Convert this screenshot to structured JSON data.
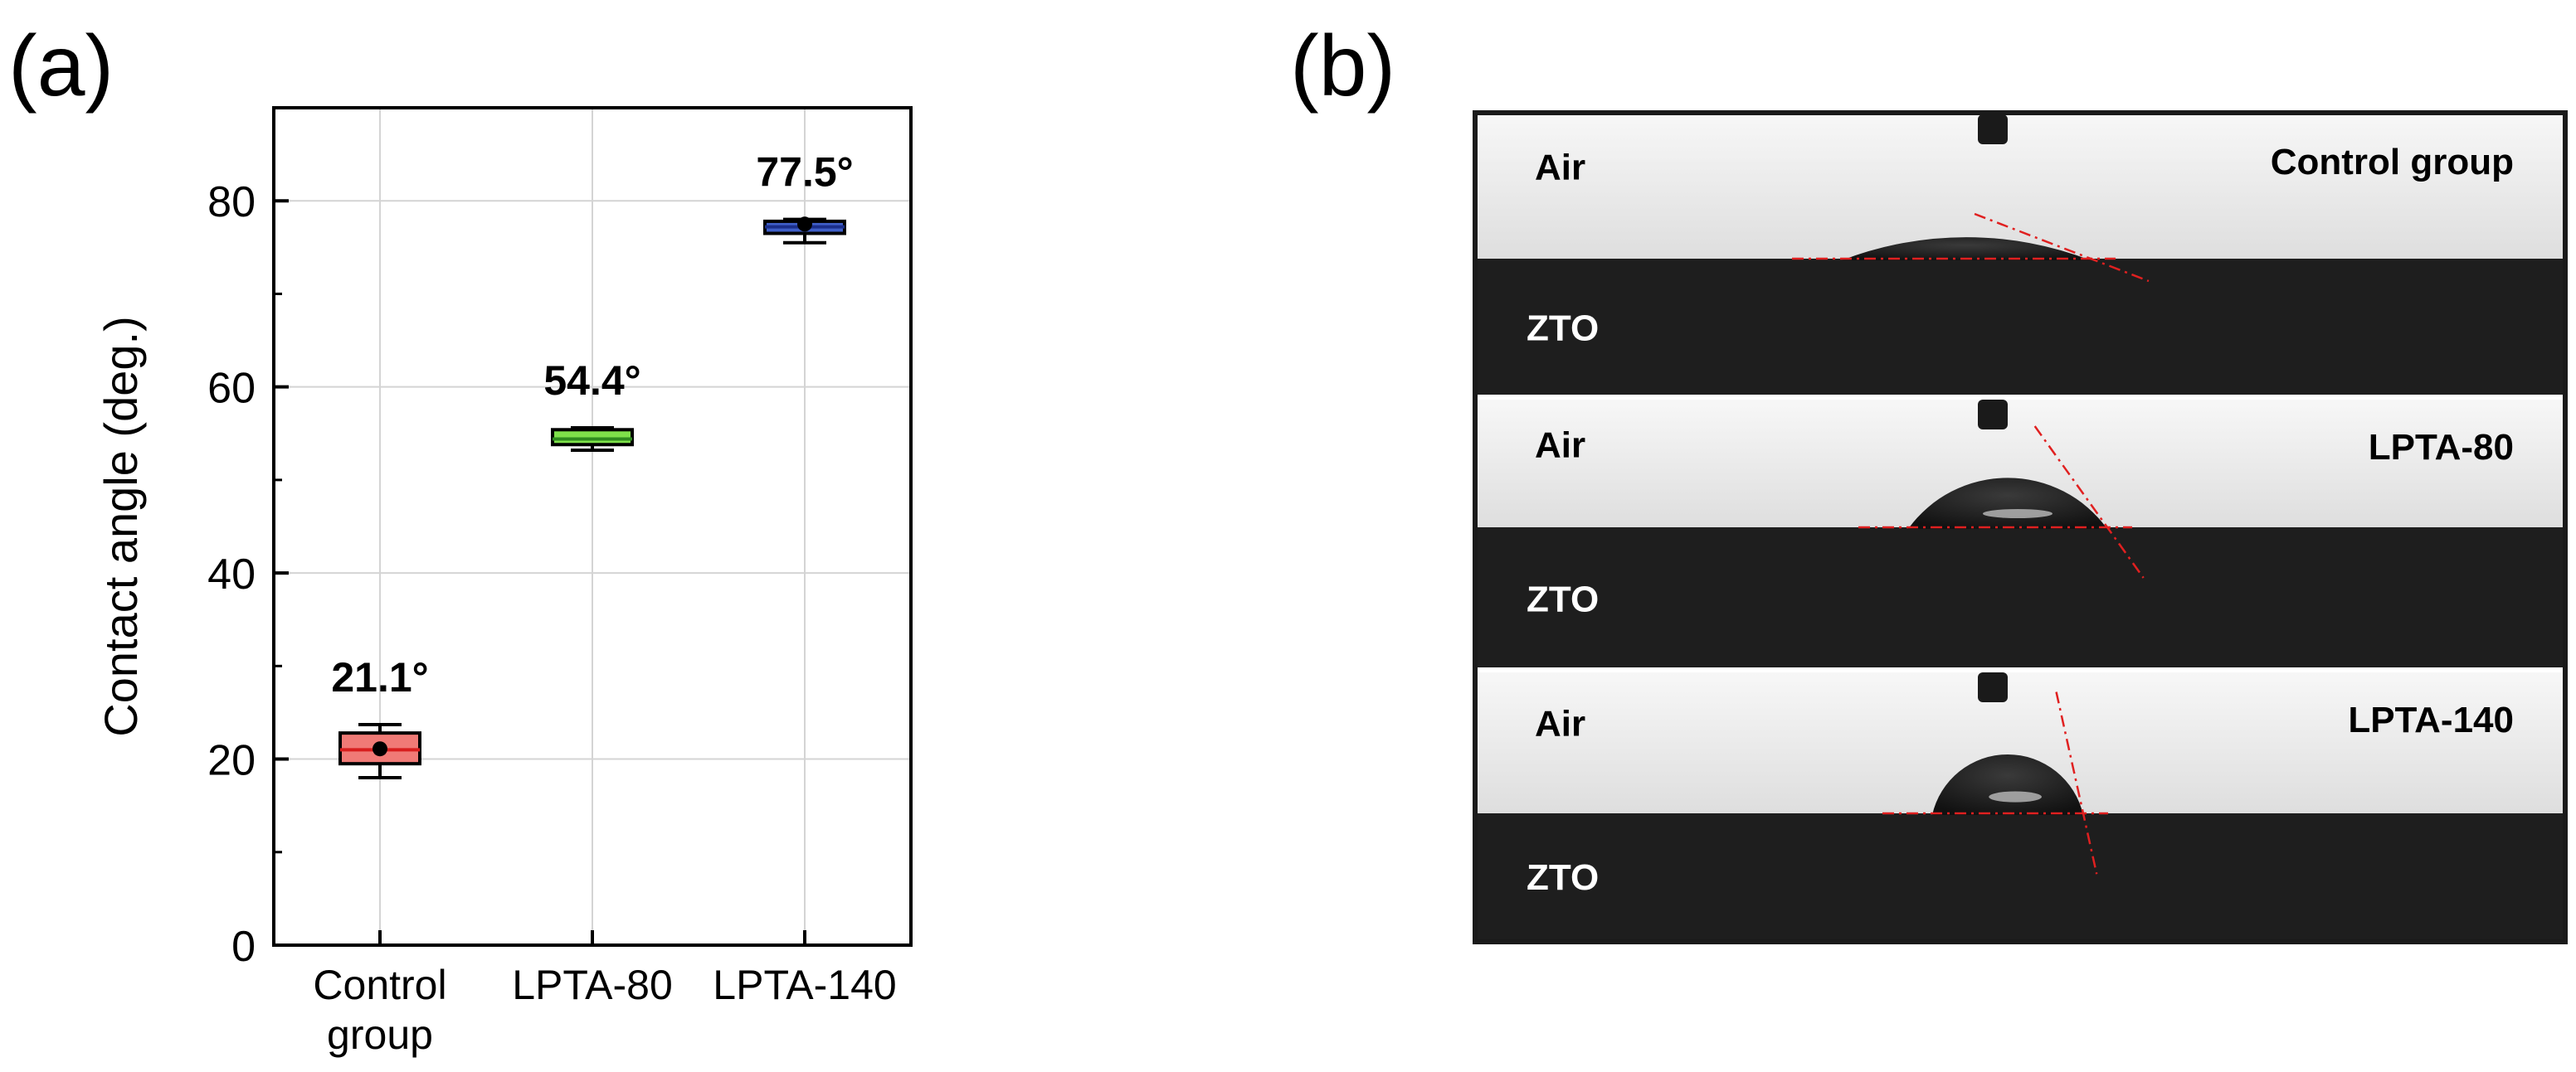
{
  "panel_a": {
    "label": "(a)",
    "chart_data": {
      "type": "box",
      "categories": [
        [
          "Control",
          "group"
        ],
        [
          "LPTA-80"
        ],
        [
          "LPTA-140"
        ]
      ],
      "ylabel": "Contact angle (deg.)",
      "xlabel": "",
      "ylim": [
        0,
        90
      ],
      "yticks": [
        0,
        20,
        40,
        60,
        80
      ],
      "grid": true,
      "boxes": [
        {
          "category": "Control group",
          "min": 18.0,
          "q1": 19.5,
          "median": 21.0,
          "mean": 21.1,
          "q3": 22.8,
          "max": 23.7,
          "color": "#f07a76",
          "median_color": "#d81e1e",
          "mean_marker": true,
          "annotation": "21.1°"
        },
        {
          "category": "LPTA-80",
          "min": 53.2,
          "q1": 53.8,
          "median": 54.4,
          "mean": 54.4,
          "q3": 55.4,
          "max": 55.6,
          "color": "#7ee04a",
          "median_color": "#2e8b1e",
          "mean_marker": false,
          "annotation": "54.4°"
        },
        {
          "category": "LPTA-140",
          "min": 75.5,
          "q1": 76.5,
          "median": 77.2,
          "mean": 77.5,
          "q3": 77.8,
          "max": 78.0,
          "color": "#3f5fc8",
          "median_color": "#1b2e8a",
          "mean_marker": true,
          "annotation": "77.5°"
        }
      ]
    }
  },
  "panel_b": {
    "label": "(b)",
    "images": [
      {
        "title": "Control group",
        "top_medium": "Air",
        "bottom_medium": "ZTO",
        "angle_deg": 21.1
      },
      {
        "title": "LPTA-80",
        "top_medium": "Air",
        "bottom_medium": "ZTO",
        "angle_deg": 54.4
      },
      {
        "title": "LPTA-140",
        "top_medium": "Air",
        "bottom_medium": "ZTO",
        "angle_deg": 77.5
      }
    ],
    "colors": {
      "air": "#ececec",
      "substrate": "#1e1e1e",
      "tangent": "#e02020"
    }
  }
}
